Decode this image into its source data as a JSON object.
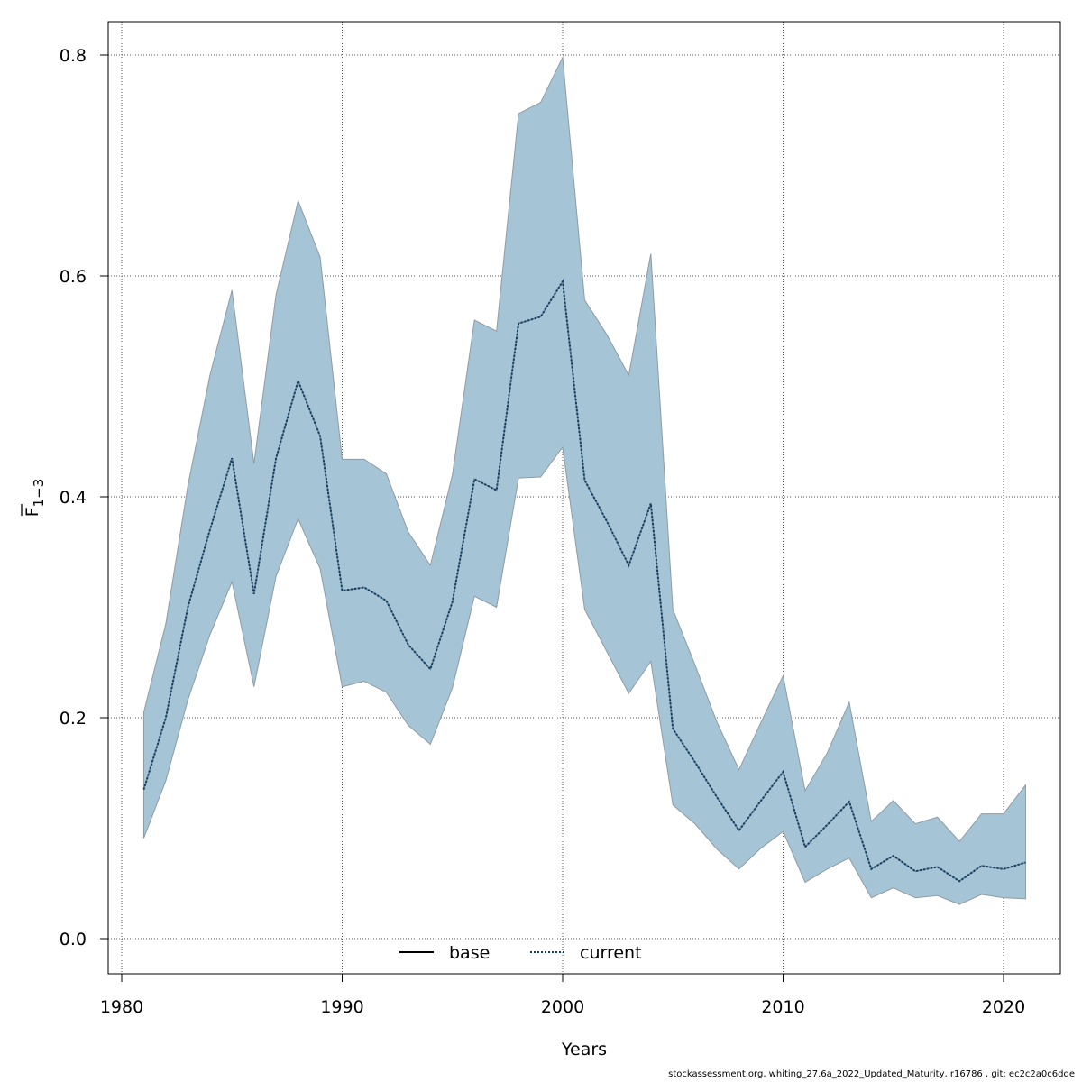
{
  "chart_data": {
    "type": "line",
    "title": "",
    "xlabel": "Years",
    "ylabel_main": "F",
    "ylabel_sub": "1−3",
    "xlim": [
      1980,
      2022
    ],
    "ylim": [
      0,
      0.8
    ],
    "x_ticks": [
      1980,
      1990,
      2000,
      2010,
      2020
    ],
    "y_ticks": [
      0.0,
      0.2,
      0.4,
      0.6,
      0.8
    ],
    "y_tick_labels": [
      "0.0",
      "0.2",
      "0.4",
      "0.6",
      "0.8"
    ],
    "grid": true,
    "legend_position": "bottom-center",
    "colors": {
      "band": "#a5c4d6",
      "band_edge": "#8f9ba3",
      "current": "#0b3d66",
      "base": "#000000",
      "grid": "#555555"
    },
    "x": [
      1981,
      1982,
      1983,
      1984,
      1985,
      1986,
      1987,
      1988,
      1989,
      1990,
      1991,
      1992,
      1993,
      1994,
      1995,
      1996,
      1997,
      1998,
      1999,
      2000,
      2001,
      2002,
      2003,
      2004,
      2005,
      2006,
      2007,
      2008,
      2009,
      2010,
      2011,
      2012,
      2013,
      2014,
      2015,
      2016,
      2017,
      2018,
      2019,
      2020,
      2021
    ],
    "series": [
      {
        "name": "base",
        "style": "solid",
        "values": [
          0.135,
          0.2,
          0.3,
          0.37,
          0.435,
          0.312,
          0.435,
          0.505,
          0.455,
          0.315,
          0.318,
          0.306,
          0.266,
          0.244,
          0.305,
          0.416,
          0.406,
          0.557,
          0.563,
          0.595,
          0.415,
          0.378,
          0.338,
          0.394,
          0.19,
          0.16,
          0.128,
          0.098,
          0.125,
          0.151,
          0.083,
          0.103,
          0.124,
          0.063,
          0.075,
          0.061,
          0.065,
          0.052,
          0.066,
          0.063,
          0.069
        ]
      },
      {
        "name": "current",
        "style": "dotted",
        "values": [
          0.135,
          0.2,
          0.3,
          0.37,
          0.435,
          0.312,
          0.435,
          0.505,
          0.455,
          0.315,
          0.318,
          0.306,
          0.266,
          0.244,
          0.305,
          0.416,
          0.406,
          0.557,
          0.563,
          0.595,
          0.415,
          0.378,
          0.338,
          0.394,
          0.19,
          0.16,
          0.128,
          0.098,
          0.125,
          0.151,
          0.083,
          0.103,
          0.124,
          0.063,
          0.075,
          0.061,
          0.065,
          0.052,
          0.066,
          0.063,
          0.069
        ]
      }
    ],
    "band_upper": [
      0.205,
      0.285,
      0.41,
      0.51,
      0.587,
      0.43,
      0.583,
      0.668,
      0.617,
      0.434,
      0.434,
      0.421,
      0.368,
      0.338,
      0.42,
      0.56,
      0.55,
      0.747,
      0.757,
      0.798,
      0.578,
      0.547,
      0.51,
      0.62,
      0.298,
      0.248,
      0.196,
      0.153,
      0.196,
      0.238,
      0.134,
      0.168,
      0.214,
      0.106,
      0.125,
      0.104,
      0.11,
      0.088,
      0.113,
      0.113,
      0.139
    ],
    "band_lower": [
      0.091,
      0.143,
      0.216,
      0.275,
      0.323,
      0.228,
      0.328,
      0.38,
      0.335,
      0.228,
      0.233,
      0.223,
      0.193,
      0.176,
      0.227,
      0.31,
      0.3,
      0.417,
      0.418,
      0.445,
      0.298,
      0.26,
      0.222,
      0.251,
      0.121,
      0.104,
      0.081,
      0.063,
      0.082,
      0.097,
      0.051,
      0.063,
      0.073,
      0.037,
      0.046,
      0.037,
      0.039,
      0.031,
      0.04,
      0.037,
      0.036
    ]
  },
  "footer_text": "stockassessment.org, whiting_27.6a_2022_Updated_Maturity, r16786 , git: ec2c2a0c6dde"
}
